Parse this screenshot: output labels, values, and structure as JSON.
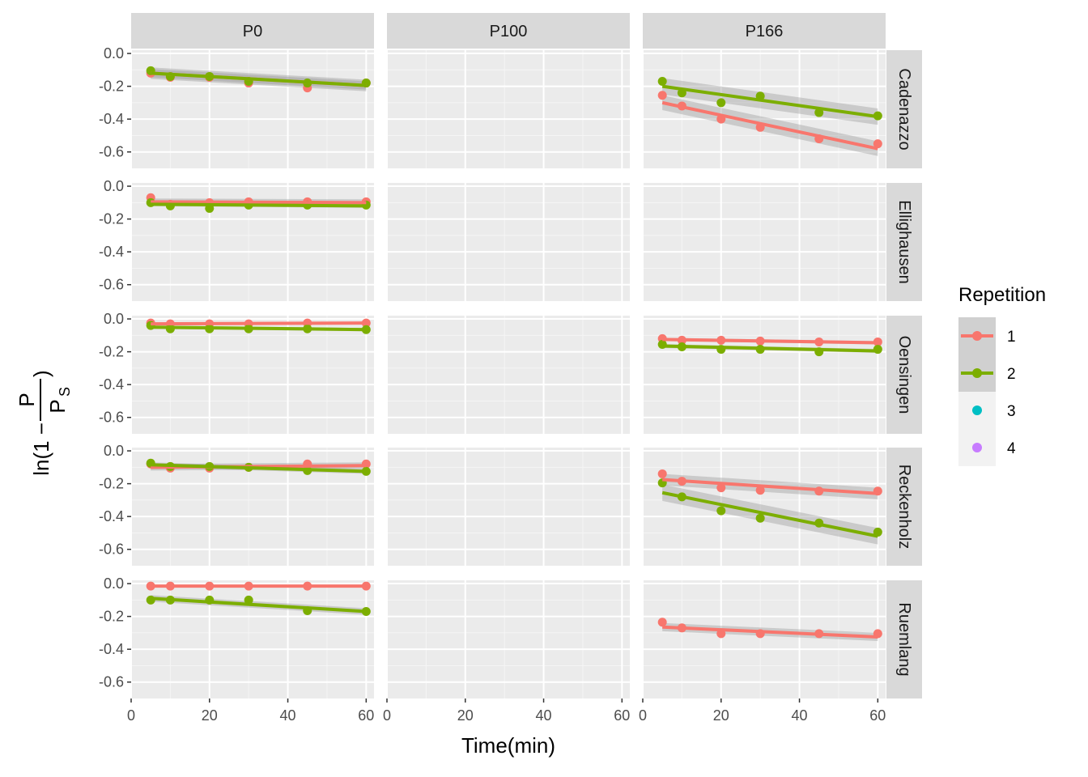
{
  "chart_data": {
    "type": "scatter",
    "xlabel": "Time(min)",
    "ylabel": {
      "prefix": "ln(1 −",
      "numerator": "P",
      "denominator": "P",
      "subscript": "S",
      "suffix": ")"
    },
    "xlim": [
      0,
      62
    ],
    "ylim": [
      -0.7,
      0.02
    ],
    "x_ticks": [
      0,
      20,
      40,
      60
    ],
    "x_tick_labels": [
      "0",
      "20",
      "40",
      "60"
    ],
    "y_ticks": [
      0.0,
      -0.2,
      -0.4,
      -0.6
    ],
    "y_tick_labels": [
      "0.0",
      "-0.2",
      "-0.4",
      "-0.6"
    ],
    "grid": true,
    "facet_cols": [
      "P0",
      "P100",
      "P166"
    ],
    "facet_rows": [
      "Cadenazzo",
      "Ellighausen",
      "Oensingen",
      "Reckenholz",
      "Ruemlang"
    ],
    "legend": {
      "title": "Repetition",
      "placement": "right",
      "entries": [
        {
          "label": "1",
          "color": "#F8766D",
          "has_line": true
        },
        {
          "label": "2",
          "color": "#7CAE00",
          "has_line": true
        },
        {
          "label": "3",
          "color": "#00BFC4",
          "has_line": false
        },
        {
          "label": "4",
          "color": "#C77CFF",
          "has_line": false
        }
      ]
    },
    "panels": [
      {
        "col": "P0",
        "row": "Cadenazzo",
        "series": [
          {
            "rep": "1",
            "x": [
              5,
              10,
              20,
              30,
              45,
              60
            ],
            "y": [
              -0.12,
              -0.145,
              -0.145,
              -0.18,
              -0.21,
              -0.18
            ],
            "fit": [
              -0.12,
              -0.195
            ],
            "ci": 0.035
          },
          {
            "rep": "2",
            "x": [
              5,
              10,
              20,
              30,
              45,
              60
            ],
            "y": [
              -0.105,
              -0.14,
              -0.14,
              -0.17,
              -0.18,
              -0.18
            ],
            "fit": [
              -0.12,
              -0.195
            ],
            "ci": 0.025
          }
        ]
      },
      {
        "col": "P166",
        "row": "Cadenazzo",
        "series": [
          {
            "rep": "1",
            "x": [
              5,
              10,
              20,
              30,
              45,
              60
            ],
            "y": [
              -0.255,
              -0.32,
              -0.4,
              -0.45,
              -0.52,
              -0.55
            ],
            "fit": [
              -0.3,
              -0.58
            ],
            "ci": 0.045
          },
          {
            "rep": "2",
            "x": [
              5,
              10,
              20,
              30,
              45,
              60
            ],
            "y": [
              -0.17,
              -0.24,
              -0.3,
              -0.26,
              -0.36,
              -0.38
            ],
            "fit": [
              -0.2,
              -0.385
            ],
            "ci": 0.05
          }
        ]
      },
      {
        "col": "P0",
        "row": "Ellighausen",
        "series": [
          {
            "rep": "1",
            "x": [
              5,
              10,
              20,
              30,
              45,
              60
            ],
            "y": [
              -0.07,
              -0.11,
              -0.1,
              -0.095,
              -0.095,
              -0.095
            ],
            "fit": [
              -0.095,
              -0.1
            ],
            "ci": 0.02
          },
          {
            "rep": "2",
            "x": [
              5,
              10,
              20,
              30,
              45,
              60
            ],
            "y": [
              -0.1,
              -0.12,
              -0.135,
              -0.115,
              -0.115,
              -0.115
            ],
            "fit": [
              -0.11,
              -0.12
            ],
            "ci": 0.012
          }
        ]
      },
      {
        "col": "P0",
        "row": "Oensingen",
        "series": [
          {
            "rep": "1",
            "x": [
              5,
              10,
              20,
              30,
              45,
              60
            ],
            "y": [
              -0.025,
              -0.03,
              -0.03,
              -0.03,
              -0.025,
              -0.025
            ],
            "fit": [
              -0.03,
              -0.025
            ],
            "ci": 0.006
          },
          {
            "rep": "2",
            "x": [
              5,
              10,
              20,
              30,
              45,
              60
            ],
            "y": [
              -0.04,
              -0.06,
              -0.06,
              -0.06,
              -0.06,
              -0.065
            ],
            "fit": [
              -0.05,
              -0.065
            ],
            "ci": 0.01
          }
        ]
      },
      {
        "col": "P166",
        "row": "Oensingen",
        "series": [
          {
            "rep": "1",
            "x": [
              5,
              10,
              20,
              30,
              45,
              60
            ],
            "y": [
              -0.12,
              -0.13,
              -0.13,
              -0.135,
              -0.14,
              -0.14
            ],
            "fit": [
              -0.125,
              -0.145
            ],
            "ci": 0.01
          },
          {
            "rep": "2",
            "x": [
              5,
              10,
              20,
              30,
              45,
              60
            ],
            "y": [
              -0.155,
              -0.17,
              -0.185,
              -0.185,
              -0.2,
              -0.185
            ],
            "fit": [
              -0.165,
              -0.195
            ],
            "ci": 0.012
          }
        ]
      },
      {
        "col": "P0",
        "row": "Reckenholz",
        "series": [
          {
            "rep": "1",
            "x": [
              5,
              10,
              20,
              30,
              45,
              60
            ],
            "y": [
              -0.08,
              -0.105,
              -0.105,
              -0.1,
              -0.08,
              -0.08
            ],
            "fit": [
              -0.1,
              -0.09
            ],
            "ci": 0.02
          },
          {
            "rep": "2",
            "x": [
              5,
              10,
              20,
              30,
              45,
              60
            ],
            "y": [
              -0.075,
              -0.095,
              -0.095,
              -0.1,
              -0.12,
              -0.125
            ],
            "fit": [
              -0.085,
              -0.125
            ],
            "ci": 0.015
          }
        ]
      },
      {
        "col": "P166",
        "row": "Reckenholz",
        "series": [
          {
            "rep": "1",
            "x": [
              5,
              10,
              20,
              30,
              45,
              60
            ],
            "y": [
              -0.14,
              -0.185,
              -0.225,
              -0.24,
              -0.245,
              -0.245
            ],
            "fit": [
              -0.175,
              -0.26
            ],
            "ci": 0.035
          },
          {
            "rep": "2",
            "x": [
              5,
              10,
              20,
              30,
              45,
              60
            ],
            "y": [
              -0.195,
              -0.28,
              -0.365,
              -0.41,
              -0.44,
              -0.495
            ],
            "fit": [
              -0.255,
              -0.52
            ],
            "ci": 0.05
          }
        ]
      },
      {
        "col": "P0",
        "row": "Ruemlang",
        "series": [
          {
            "rep": "1",
            "x": [
              5,
              10,
              20,
              30,
              45,
              60
            ],
            "y": [
              -0.015,
              -0.015,
              -0.015,
              -0.015,
              -0.015,
              -0.015
            ],
            "fit": [
              -0.015,
              -0.015
            ],
            "ci": 0.004
          },
          {
            "rep": "2",
            "x": [
              5,
              10,
              20,
              30,
              45,
              60
            ],
            "y": [
              -0.1,
              -0.1,
              -0.1,
              -0.1,
              -0.165,
              -0.17
            ],
            "fit": [
              -0.09,
              -0.17
            ],
            "ci": 0.02
          }
        ]
      },
      {
        "col": "P166",
        "row": "Ruemlang",
        "series": [
          {
            "rep": "1",
            "x": [
              5,
              10,
              20,
              30,
              45,
              60
            ],
            "y": [
              -0.235,
              -0.27,
              -0.305,
              -0.305,
              -0.305,
              -0.305
            ],
            "fit": [
              -0.265,
              -0.325
            ],
            "ci": 0.025
          }
        ]
      }
    ]
  }
}
